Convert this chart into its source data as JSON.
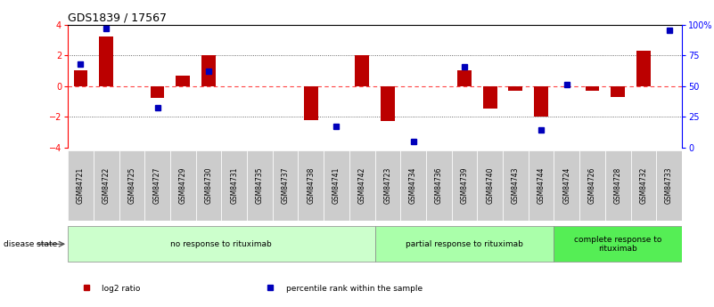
{
  "title": "GDS1839 / 17567",
  "samples": [
    "GSM84721",
    "GSM84722",
    "GSM84725",
    "GSM84727",
    "GSM84729",
    "GSM84730",
    "GSM84731",
    "GSM84735",
    "GSM84737",
    "GSM84738",
    "GSM84741",
    "GSM84742",
    "GSM84723",
    "GSM84734",
    "GSM84736",
    "GSM84739",
    "GSM84740",
    "GSM84743",
    "GSM84744",
    "GSM84724",
    "GSM84726",
    "GSM84728",
    "GSM84732",
    "GSM84733"
  ],
  "log2_ratio": [
    1.0,
    3.2,
    0.0,
    -0.8,
    0.7,
    2.0,
    0.0,
    0.0,
    0.0,
    -2.2,
    0.0,
    2.0,
    -2.3,
    0.0,
    0.0,
    1.0,
    -1.5,
    -0.3,
    -2.0,
    0.0,
    -0.3,
    -0.7,
    2.3,
    0.0
  ],
  "percentile": [
    68,
    97,
    null,
    32,
    null,
    62,
    null,
    null,
    null,
    null,
    17,
    null,
    null,
    5,
    null,
    66,
    null,
    null,
    14,
    51,
    null,
    null,
    null,
    95
  ],
  "groups": [
    {
      "label": "no response to rituximab",
      "start": 0,
      "end": 12,
      "color": "#ccffcc"
    },
    {
      "label": "partial response to rituximab",
      "start": 12,
      "end": 19,
      "color": "#aaffaa"
    },
    {
      "label": "complete response to\nrituximab",
      "start": 19,
      "end": 24,
      "color": "#55ee55"
    }
  ],
  "ylim_left": [
    -4,
    4
  ],
  "ylim_right": [
    0,
    100
  ],
  "yticks_left": [
    -4,
    -2,
    0,
    2,
    4
  ],
  "yticks_right": [
    0,
    25,
    50,
    75,
    100
  ],
  "bar_color": "#bb0000",
  "dot_color": "#0000bb",
  "zero_line_color": "#ff4444",
  "dotted_line_color": "#444444",
  "bg_color": "#ffffff",
  "sample_box_color": "#cccccc",
  "legend_items": [
    {
      "label": "log2 ratio",
      "color": "#bb0000"
    },
    {
      "label": "percentile rank within the sample",
      "color": "#0000bb"
    }
  ]
}
